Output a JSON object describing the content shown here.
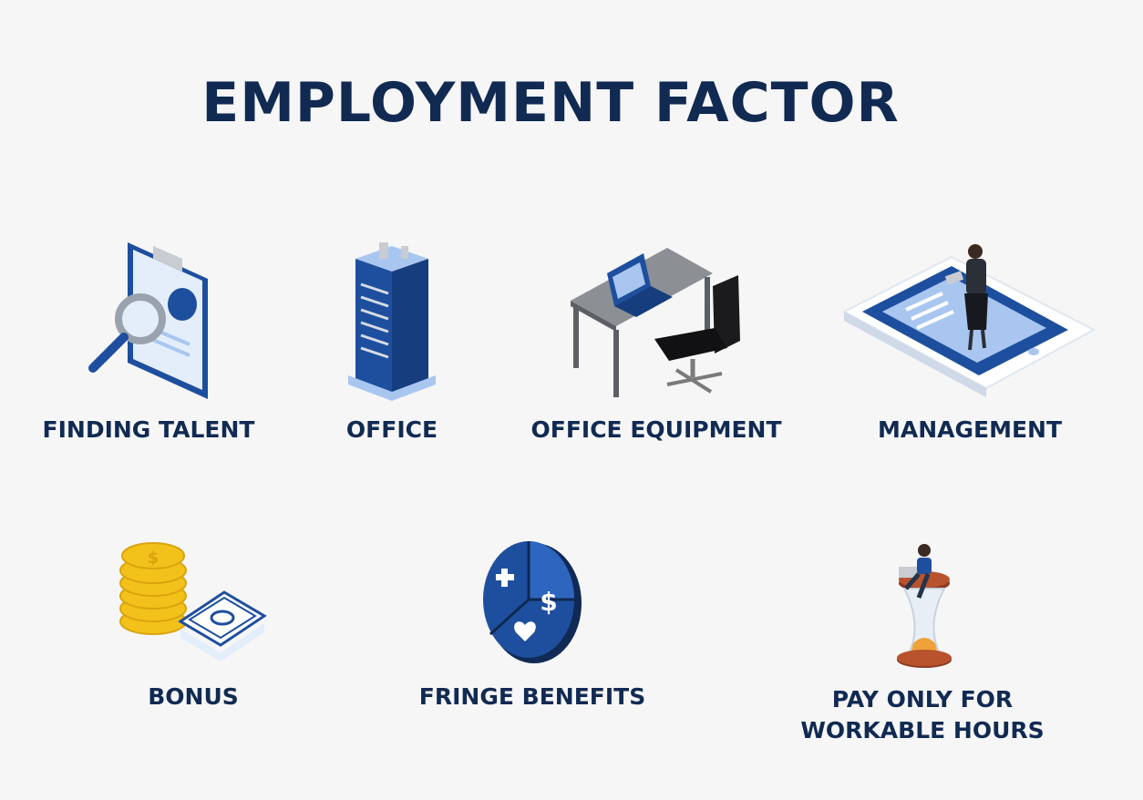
{
  "title": "EMPLOYMENT FACTOR",
  "colors": {
    "text": "#112a52",
    "primary_blue": "#1e4f9e",
    "light_blue": "#a9c6f0",
    "background": "#f6f6f7",
    "gold": "#f2c21b",
    "gray": "#7a7a7a"
  },
  "factors": [
    {
      "label": "FINDING TALENT",
      "icon": "clipboard-magnifier-icon"
    },
    {
      "label": "OFFICE",
      "icon": "office-building-icon"
    },
    {
      "label": "OFFICE EQUIPMENT",
      "icon": "desk-laptop-chair-icon"
    },
    {
      "label": "MANAGEMENT",
      "icon": "tablet-manager-icon"
    },
    {
      "label": "BONUS",
      "icon": "coins-cash-icon"
    },
    {
      "label": "FRINGE BENEFITS",
      "icon": "benefits-pie-icon"
    },
    {
      "label_line1": "PAY ONLY FOR",
      "label_line2": "WORKABLE HOURS",
      "icon": "hourglass-worker-icon"
    }
  ]
}
